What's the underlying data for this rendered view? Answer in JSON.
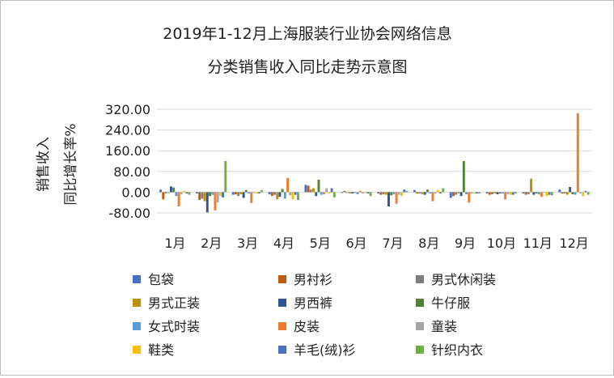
{
  "chart_data": {
    "type": "bar",
    "title_lines": [
      "2019年1-12月上海服装行业协会网络信息",
      "分类销售收入同比走势示意图"
    ],
    "ylabel_lines": [
      "销售收入",
      "同比增长率%"
    ],
    "xlabel": "",
    "ylim": [
      -80,
      320
    ],
    "yticks": [
      "320.00",
      "240.00",
      "160.00",
      "80.00",
      "0.00",
      "-80.00"
    ],
    "yticks_values": [
      320,
      240,
      160,
      80,
      0,
      -80
    ],
    "grid": true,
    "legend_position": "bottom",
    "categories": [
      "1月",
      "2月",
      "3月",
      "4月",
      "5月",
      "6月",
      "7月",
      "8月",
      "9月",
      "10月",
      "11月",
      "12月"
    ],
    "series": [
      {
        "name": "包袋",
        "color": "#4472C4",
        "values": [
          10,
          -5,
          -10,
          -8,
          28,
          -3,
          -5,
          8,
          -22,
          -5,
          -5,
          10
        ]
      },
      {
        "name": "男衬衫",
        "color": "#C55A11",
        "values": [
          -28,
          -30,
          -8,
          -15,
          25,
          5,
          -10,
          -5,
          -15,
          -10,
          -10,
          -5
        ]
      },
      {
        "name": "男式休闲装",
        "color": "#7F7F7F",
        "values": [
          -5,
          -25,
          -15,
          -10,
          10,
          -3,
          -8,
          -5,
          -10,
          -8,
          -8,
          -5
        ]
      },
      {
        "name": "男式正装",
        "color": "#BF9000",
        "values": [
          -3,
          -35,
          -8,
          -28,
          15,
          -5,
          -10,
          -8,
          -5,
          -5,
          52,
          -10
        ]
      },
      {
        "name": "男西裤",
        "color": "#2F5597",
        "values": [
          22,
          -78,
          -22,
          -18,
          -15,
          -5,
          -55,
          -10,
          -15,
          -8,
          -10,
          20
        ]
      },
      {
        "name": "牛仔服",
        "color": "#548235",
        "values": [
          18,
          -15,
          8,
          12,
          48,
          -3,
          -12,
          10,
          120,
          -5,
          -5,
          -8
        ]
      },
      {
        "name": "女式时装",
        "color": "#5B9BD5",
        "values": [
          -15,
          -10,
          -5,
          -25,
          -10,
          -8,
          -8,
          -5,
          -8,
          -5,
          -8,
          -10
        ]
      },
      {
        "name": "皮装",
        "color": "#ED7D31",
        "values": [
          -55,
          -70,
          -42,
          55,
          -8,
          5,
          -45,
          -35,
          -40,
          -28,
          -18,
          305
        ]
      },
      {
        "name": "童装",
        "color": "#A5A5A5",
        "values": [
          -8,
          -40,
          -3,
          -12,
          15,
          -5,
          -10,
          -5,
          -5,
          -8,
          -3,
          -5
        ]
      },
      {
        "name": "鞋类",
        "color": "#FFC000",
        "values": [
          5,
          -15,
          -5,
          -28,
          -5,
          -3,
          -15,
          8,
          -5,
          -10,
          -15,
          -15
        ]
      },
      {
        "name": "羊毛(绒)衫",
        "color": "#4472C4",
        "values": [
          -5,
          -20,
          -5,
          -10,
          15,
          -5,
          10,
          -5,
          -5,
          -10,
          -10,
          5
        ]
      },
      {
        "name": "针织内衣",
        "color": "#70AD47",
        "values": [
          -10,
          120,
          8,
          -30,
          -20,
          -15,
          5,
          15,
          -5,
          -5,
          -12,
          -10
        ]
      }
    ]
  }
}
